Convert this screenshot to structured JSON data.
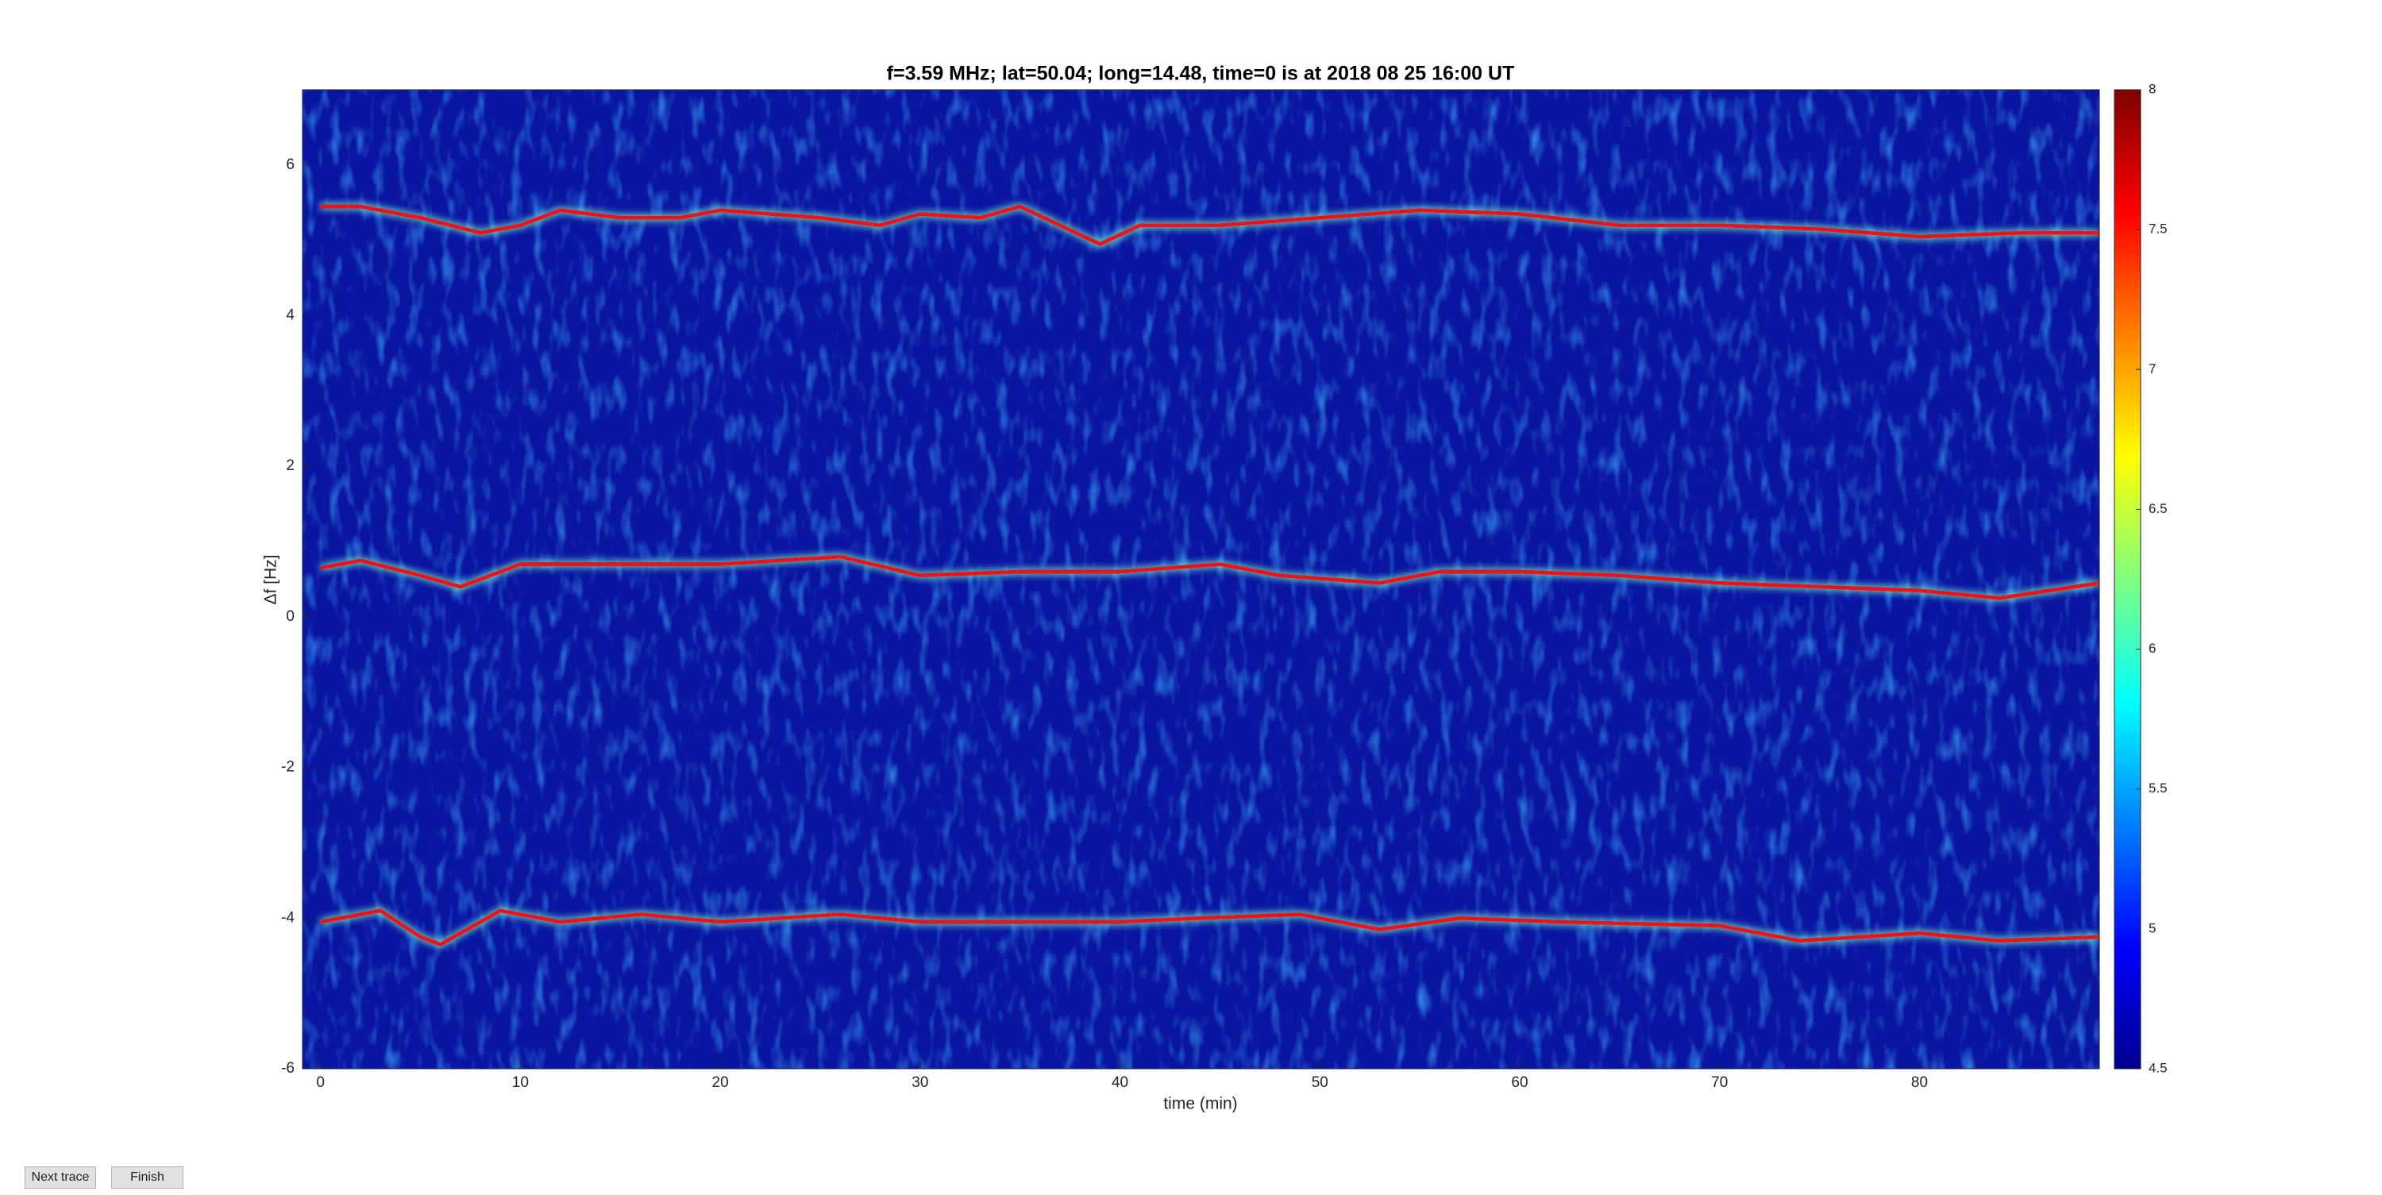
{
  "chart_data": {
    "type": "spectrogram",
    "title": "f=3.59 MHz;  lat=50.04; long=14.48, time=0 is at 2018 08 25 16:00 UT",
    "x_label": "time (min)",
    "y_label": "Δf [Hz]",
    "xlim": [
      -0.9,
      89
    ],
    "xticks": [
      0,
      10,
      20,
      30,
      40,
      50,
      60,
      70,
      80
    ],
    "ylim": [
      -6,
      7
    ],
    "yticks": [
      -6,
      -4,
      -2,
      0,
      2,
      4,
      6
    ],
    "background": "#0a16a2",
    "colorbar": {
      "colormap": "jet",
      "lim": [
        4.5,
        8
      ],
      "ticks": [
        4.5,
        5,
        5.5,
        6,
        6.5,
        7,
        7.5,
        8
      ]
    },
    "series": [
      {
        "color": "#e3141c",
        "x": [
          0,
          2,
          5,
          8,
          10,
          12,
          15,
          18,
          20,
          25,
          28,
          30,
          33,
          35,
          37,
          39,
          41,
          45,
          50,
          55,
          60,
          65,
          70,
          75,
          80,
          85,
          89
        ],
        "values": [
          5.45,
          5.45,
          5.3,
          5.1,
          5.2,
          5.4,
          5.3,
          5.3,
          5.4,
          5.3,
          5.2,
          5.35,
          5.3,
          5.45,
          5.2,
          4.95,
          5.2,
          5.2,
          5.3,
          5.4,
          5.35,
          5.2,
          5.2,
          5.15,
          5.05,
          5.1,
          5.1
        ]
      },
      {
        "color": "#e3141c",
        "x": [
          0,
          2,
          5,
          7,
          10,
          15,
          20,
          26,
          30,
          35,
          40,
          45,
          48,
          53,
          56,
          60,
          65,
          70,
          75,
          80,
          84,
          89
        ],
        "values": [
          0.65,
          0.75,
          0.55,
          0.4,
          0.7,
          0.7,
          0.7,
          0.8,
          0.55,
          0.6,
          0.6,
          0.7,
          0.55,
          0.45,
          0.6,
          0.6,
          0.55,
          0.45,
          0.4,
          0.35,
          0.25,
          0.45
        ]
      },
      {
        "color": "#e3141c",
        "x": [
          0,
          3,
          5,
          6,
          9,
          12,
          16,
          20,
          26,
          30,
          35,
          40,
          44,
          49,
          53,
          57,
          62,
          70,
          74,
          80,
          84,
          89
        ],
        "values": [
          -4.05,
          -3.9,
          -4.25,
          -4.35,
          -3.9,
          -4.05,
          -3.95,
          -4.05,
          -3.95,
          -4.05,
          -4.05,
          -4.05,
          -4.0,
          -3.95,
          -4.15,
          -4.0,
          -4.05,
          -4.1,
          -4.3,
          -4.2,
          -4.3,
          -4.25
        ]
      }
    ]
  },
  "buttons": [
    "Next trace",
    "Finish"
  ]
}
